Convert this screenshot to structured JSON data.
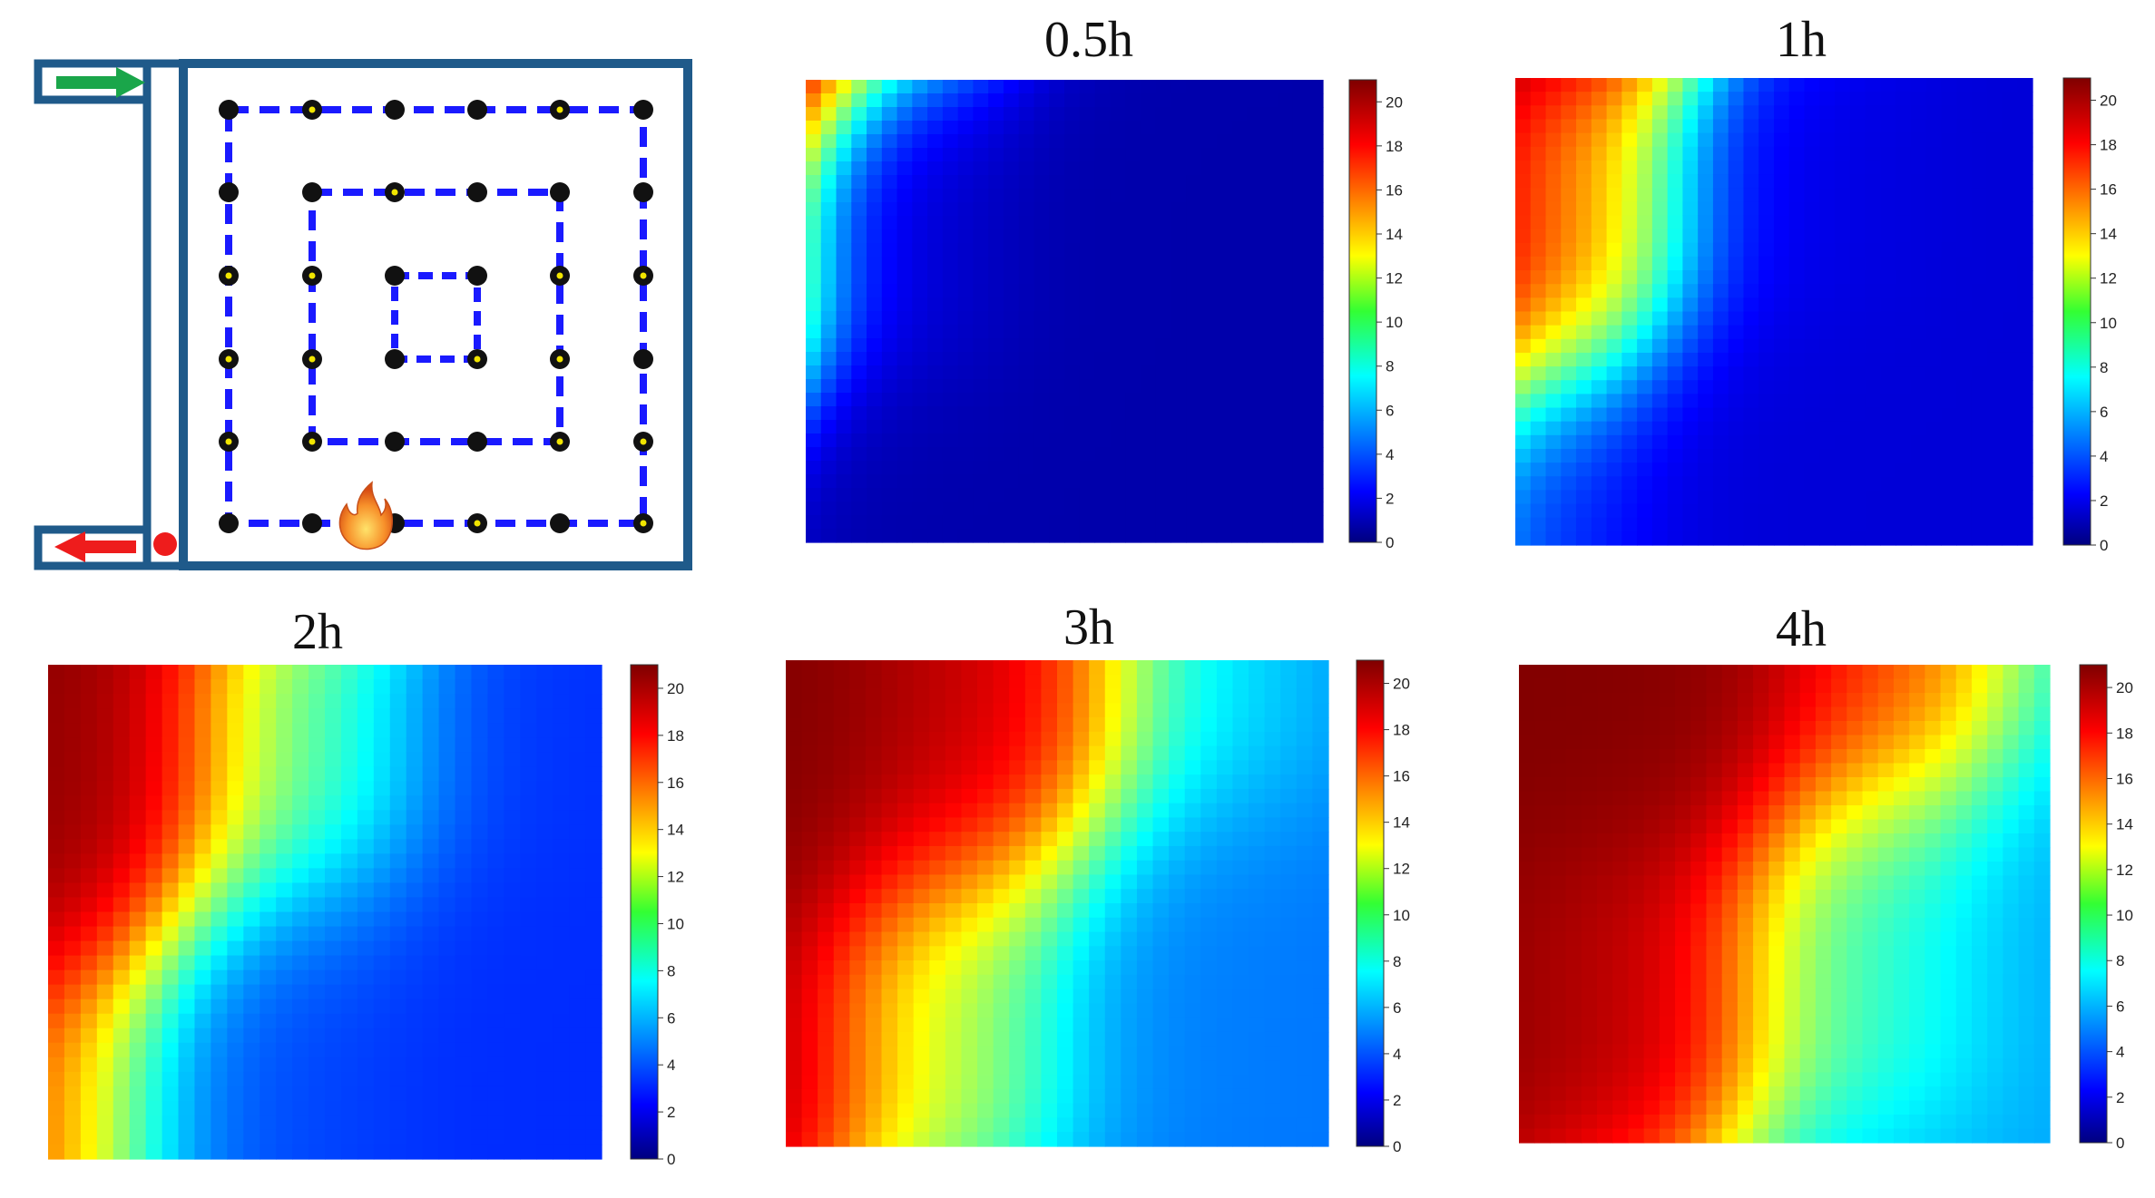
{
  "figure": {
    "colors": {
      "frame": "#1f5a8a",
      "loop": "#1a1aff",
      "node": "#111111",
      "node_dot": "#f2e600",
      "inlet_arrow": "#1aa64a",
      "outlet_arrow": "#ee1c1c",
      "outlet_marker": "#ee1c1c",
      "fire": "#f07a20"
    },
    "icons": [
      "inlet-arrow-icon",
      "outlet-arrow-icon",
      "fire-icon"
    ]
  },
  "chart_data": [
    {
      "type": "heatmap",
      "title": "0.5h",
      "colorbar": {
        "min": 0,
        "max": 21,
        "ticks": [
          20,
          18,
          16,
          14,
          12,
          10,
          8,
          6,
          4,
          2,
          0
        ],
        "colormap": "jet"
      },
      "grid": false,
      "hot_corner_max": 21,
      "front_position": 0.12,
      "front_width": 0.13,
      "min_value": 0.9
    },
    {
      "type": "heatmap",
      "title": "1h",
      "colorbar": {
        "min": 0,
        "max": 21,
        "ticks": [
          20,
          18,
          16,
          14,
          12,
          10,
          8,
          6,
          4,
          2,
          0
        ],
        "colormap": "jet"
      },
      "grid": false,
      "hot_corner_max": 21,
      "front_position": 0.26,
      "front_width": 0.22,
      "min_value": 1.8
    },
    {
      "type": "heatmap",
      "title": "2h",
      "colorbar": {
        "min": 0,
        "max": 21,
        "ticks": [
          20,
          18,
          16,
          14,
          12,
          10,
          8,
          6,
          4,
          2,
          0
        ],
        "colormap": "jet"
      },
      "grid": false,
      "hot_corner_max": 21,
      "front_position": 0.38,
      "front_width": 0.33,
      "min_value": 3.5
    },
    {
      "type": "heatmap",
      "title": "3h",
      "colorbar": {
        "min": 0,
        "max": 21,
        "ticks": [
          20,
          18,
          16,
          14,
          12,
          10,
          8,
          6,
          4,
          2,
          0
        ],
        "colormap": "jet"
      },
      "grid": false,
      "hot_corner_max": 21,
      "front_position": 0.5,
      "front_width": 0.4,
      "min_value": 5
    },
    {
      "type": "heatmap",
      "title": "4h",
      "colorbar": {
        "min": 0,
        "max": 21,
        "ticks": [
          20,
          18,
          16,
          14,
          12,
          10,
          8,
          6,
          4,
          2,
          0
        ],
        "colormap": "jet"
      },
      "grid": false,
      "hot_corner_max": 21,
      "front_position": 0.63,
      "front_width": 0.45,
      "min_value": 6
    }
  ]
}
